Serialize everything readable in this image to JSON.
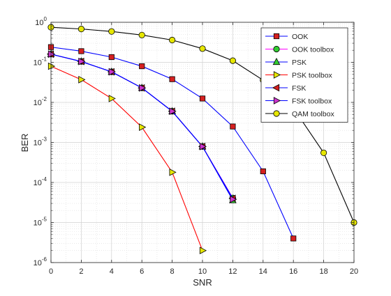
{
  "chart_data": {
    "type": "line",
    "xlabel": "SNR",
    "ylabel": "BER",
    "x_scale": "linear",
    "y_scale": "log",
    "xlim": [
      0,
      20
    ],
    "ylim": [
      1e-06,
      1
    ],
    "x_ticks": [
      0,
      2,
      4,
      6,
      8,
      10,
      12,
      14,
      16,
      18,
      20
    ],
    "x_tick_labels": [
      "0",
      "2",
      "4",
      "6",
      "8",
      "10",
      "12",
      "14",
      "16",
      "18",
      "20"
    ],
    "y_ticks": [
      1e-06,
      1e-05,
      0.0001,
      0.001,
      0.01,
      0.1,
      1
    ],
    "y_tick_labels": [
      {
        "base": "10",
        "exp": "-6"
      },
      {
        "base": "10",
        "exp": "-5"
      },
      {
        "base": "10",
        "exp": "-4"
      },
      {
        "base": "10",
        "exp": "-3"
      },
      {
        "base": "10",
        "exp": "-2"
      },
      {
        "base": "10",
        "exp": "-1"
      },
      {
        "base": "10",
        "exp": "0"
      }
    ],
    "grid": true,
    "minor_grid": true,
    "legend_position": "top-right",
    "series": [
      {
        "name": "OOK",
        "line_color": "#0000ff",
        "marker": "square",
        "marker_fill": "#d62020",
        "x": [
          0,
          2,
          4,
          6,
          8,
          10,
          12,
          14,
          16
        ],
        "y": [
          0.24,
          0.19,
          0.135,
          0.08,
          0.038,
          0.0125,
          0.0025,
          0.00019,
          4e-06
        ]
      },
      {
        "name": "OOK toolbox",
        "line_color": "#ff00ff",
        "marker": "circle",
        "marker_fill": "#33cc33",
        "x": [
          0,
          2,
          4,
          6,
          8,
          10,
          12
        ],
        "y": [
          0.16,
          0.105,
          0.058,
          0.023,
          0.006,
          0.00079,
          4.1e-05
        ]
      },
      {
        "name": "PSK",
        "line_color": "#0000ff",
        "marker": "triangle-up",
        "marker_fill": "#33cc33",
        "x": [
          0,
          2,
          4,
          6,
          8,
          10,
          12
        ],
        "y": [
          0.16,
          0.105,
          0.058,
          0.023,
          0.006,
          0.00079,
          3.6e-05
        ]
      },
      {
        "name": "PSK toolbox",
        "line_color": "#ff0000",
        "marker": "triangle-right",
        "marker_fill": "#e6e600",
        "x": [
          0,
          2,
          4,
          6,
          8,
          10
        ],
        "y": [
          0.08,
          0.037,
          0.0125,
          0.0024,
          0.00018,
          2e-06
        ]
      },
      {
        "name": "FSK",
        "line_color": "#0000ff",
        "marker": "triangle-left",
        "marker_fill": "#d62020",
        "x": [
          0,
          2,
          4,
          6,
          8,
          10,
          12
        ],
        "y": [
          0.16,
          0.105,
          0.058,
          0.023,
          0.006,
          0.00079,
          4e-05
        ]
      },
      {
        "name": "FSK toolbox",
        "line_color": "#0000ff",
        "marker": "triangle-right",
        "marker_fill": "#cc33cc",
        "x": [
          0,
          2,
          4,
          6,
          8,
          10,
          12
        ],
        "y": [
          0.16,
          0.105,
          0.058,
          0.023,
          0.006,
          0.00079,
          3.8e-05
        ]
      },
      {
        "name": "QAM toolbox",
        "line_color": "#000000",
        "marker": "circle",
        "marker_fill": "#e6e600",
        "x": [
          0,
          2,
          4,
          6,
          8,
          10,
          12,
          14,
          16,
          18,
          20
        ],
        "y": [
          0.75,
          0.68,
          0.59,
          0.48,
          0.36,
          0.22,
          0.11,
          0.036,
          0.0072,
          0.00055,
          1e-05
        ]
      }
    ]
  }
}
